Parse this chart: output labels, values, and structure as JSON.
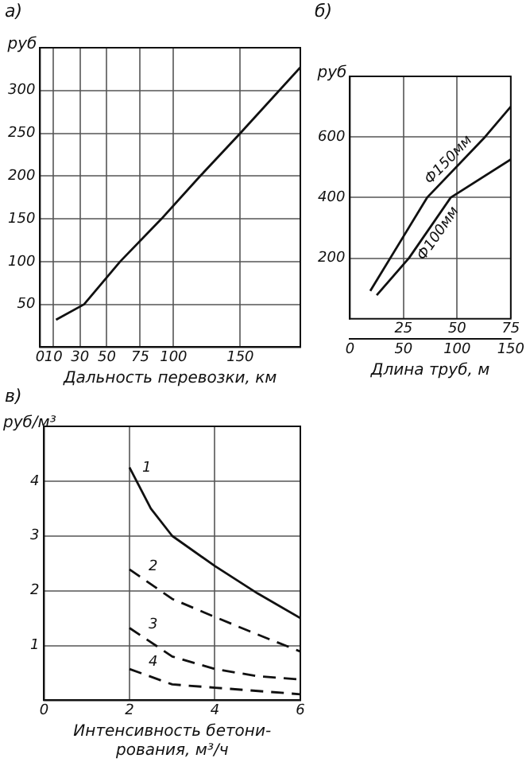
{
  "chart_data": [
    {
      "type": "line",
      "title": "а)",
      "xlabel": "Дальность перевозки, км",
      "ylabel": "руб",
      "xlim": [
        0,
        195
      ],
      "xticks": [
        0,
        10,
        30,
        50,
        75,
        100,
        150
      ],
      "ylim": [
        0,
        350
      ],
      "yticks": [
        50,
        100,
        150,
        200,
        250,
        300
      ],
      "grid": true,
      "legend": false,
      "marker": "none",
      "series": [
        {
          "color": "#111111",
          "line_style": "solid",
          "x": [
            12,
            33,
            60,
            91,
            120,
            150,
            195
          ],
          "values": [
            32,
            50,
            100,
            150,
            200,
            250,
            327
          ]
        }
      ]
    },
    {
      "type": "line",
      "title": "б)",
      "xlabel": "Длина труб, м",
      "ylabel": "руб",
      "xlim": [
        0,
        150
      ],
      "xticks": [
        0,
        50,
        100,
        150
      ],
      "x2lim": [
        0,
        75
      ],
      "x2ticks": [
        25,
        50,
        75
      ],
      "ylim": [
        0,
        800
      ],
      "yticks": [
        200,
        400,
        600
      ],
      "grid": true,
      "legend": false,
      "marker": "none",
      "series": [
        {
          "name": "Ф150мм",
          "color": "#111111",
          "line_style": "solid",
          "x": [
            19,
            72,
            126,
            150
          ],
          "values": [
            92,
            400,
            600,
            700
          ]
        },
        {
          "name": "Ф100мм",
          "color": "#111111",
          "line_style": "solid",
          "x": [
            25,
            55,
            94,
            150
          ],
          "values": [
            78,
            200,
            400,
            526
          ]
        }
      ]
    },
    {
      "type": "line",
      "title": "в)",
      "xlabel": "Интенсивность бетони-\nрования, м³/ч",
      "ylabel": "руб/м³",
      "xlim": [
        0,
        6
      ],
      "xticks": [
        0,
        2,
        4,
        6
      ],
      "ylim": [
        0,
        5
      ],
      "yticks": [
        1,
        2,
        3,
        4
      ],
      "grid": true,
      "legend": false,
      "marker": "none",
      "series": [
        {
          "name": "1",
          "color": "#111111",
          "line_style": "solid",
          "x": [
            2,
            2.5,
            3,
            4,
            5,
            6
          ],
          "values": [
            4.25,
            3.5,
            3.0,
            2.45,
            1.95,
            1.5
          ]
        },
        {
          "name": "2",
          "color": "#111111",
          "line_style": "dashed",
          "x": [
            2,
            3,
            4,
            5,
            6
          ],
          "values": [
            2.39,
            1.85,
            1.52,
            1.2,
            0.89
          ]
        },
        {
          "name": "3",
          "color": "#111111",
          "line_style": "dashed",
          "x": [
            2,
            3,
            4,
            5,
            6
          ],
          "values": [
            1.32,
            0.8,
            0.57,
            0.44,
            0.38
          ]
        },
        {
          "name": "4",
          "color": "#111111",
          "line_style": "dashed",
          "x": [
            2,
            3,
            4,
            6
          ],
          "values": [
            0.57,
            0.29,
            0.23,
            0.11
          ]
        }
      ]
    }
  ]
}
